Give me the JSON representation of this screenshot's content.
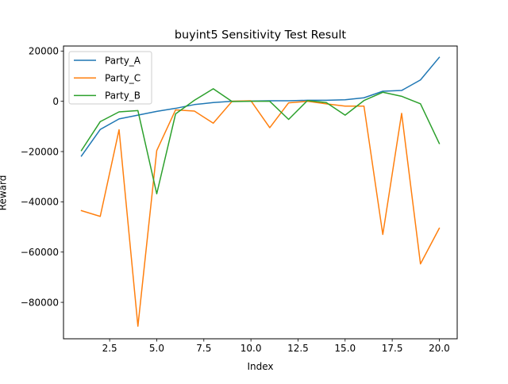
{
  "chart_data": {
    "type": "line",
    "title": "buyint5 Sensitivity Test Result",
    "xlabel": "Index",
    "ylabel": "Reward",
    "xlim": [
      0.05,
      20.95
    ],
    "ylim": [
      -94500,
      22000
    ],
    "xticks": [
      2.5,
      5.0,
      7.5,
      10.0,
      12.5,
      15.0,
      17.5,
      20.0
    ],
    "xtick_labels": [
      "2.5",
      "5.0",
      "7.5",
      "10.0",
      "12.5",
      "15.0",
      "17.5",
      "20.0"
    ],
    "yticks": [
      20000,
      0,
      -20000,
      -40000,
      -60000,
      -80000
    ],
    "ytick_labels": [
      "20000",
      "0",
      "−20000",
      "−40000",
      "−60000",
      "−80000"
    ],
    "grid": false,
    "legend": {
      "placement": "top-left",
      "entries": [
        "Party_A",
        "Party_C",
        "Party_B"
      ]
    },
    "x": [
      1,
      2,
      3,
      4,
      5,
      6,
      7,
      8,
      9,
      10,
      11,
      12,
      13,
      14,
      15,
      16,
      17,
      18,
      19,
      20
    ],
    "series": [
      {
        "name": "Party_A",
        "color": "#1f77b4",
        "values": [
          -21800,
          -11200,
          -7000,
          -5500,
          -4000,
          -2800,
          -1300,
          -500,
          0,
          100,
          200,
          200,
          400,
          400,
          600,
          1400,
          4000,
          4300,
          8500,
          17500
        ]
      },
      {
        "name": "Party_C",
        "color": "#ff7f0e",
        "values": [
          -43500,
          -45800,
          -11300,
          -89500,
          -19600,
          -3400,
          -3900,
          -8700,
          0,
          200,
          -10500,
          -600,
          0,
          -1000,
          -1900,
          -1900,
          -53000,
          -4800,
          -64700,
          -50500
        ]
      },
      {
        "name": "Party_B",
        "color": "#2ca02c",
        "values": [
          -19600,
          -8100,
          -4200,
          -3700,
          -36800,
          -5000,
          400,
          5000,
          -100,
          0,
          0,
          -7200,
          300,
          -500,
          -5500,
          300,
          3600,
          2000,
          -1000,
          -16800
        ]
      }
    ]
  }
}
